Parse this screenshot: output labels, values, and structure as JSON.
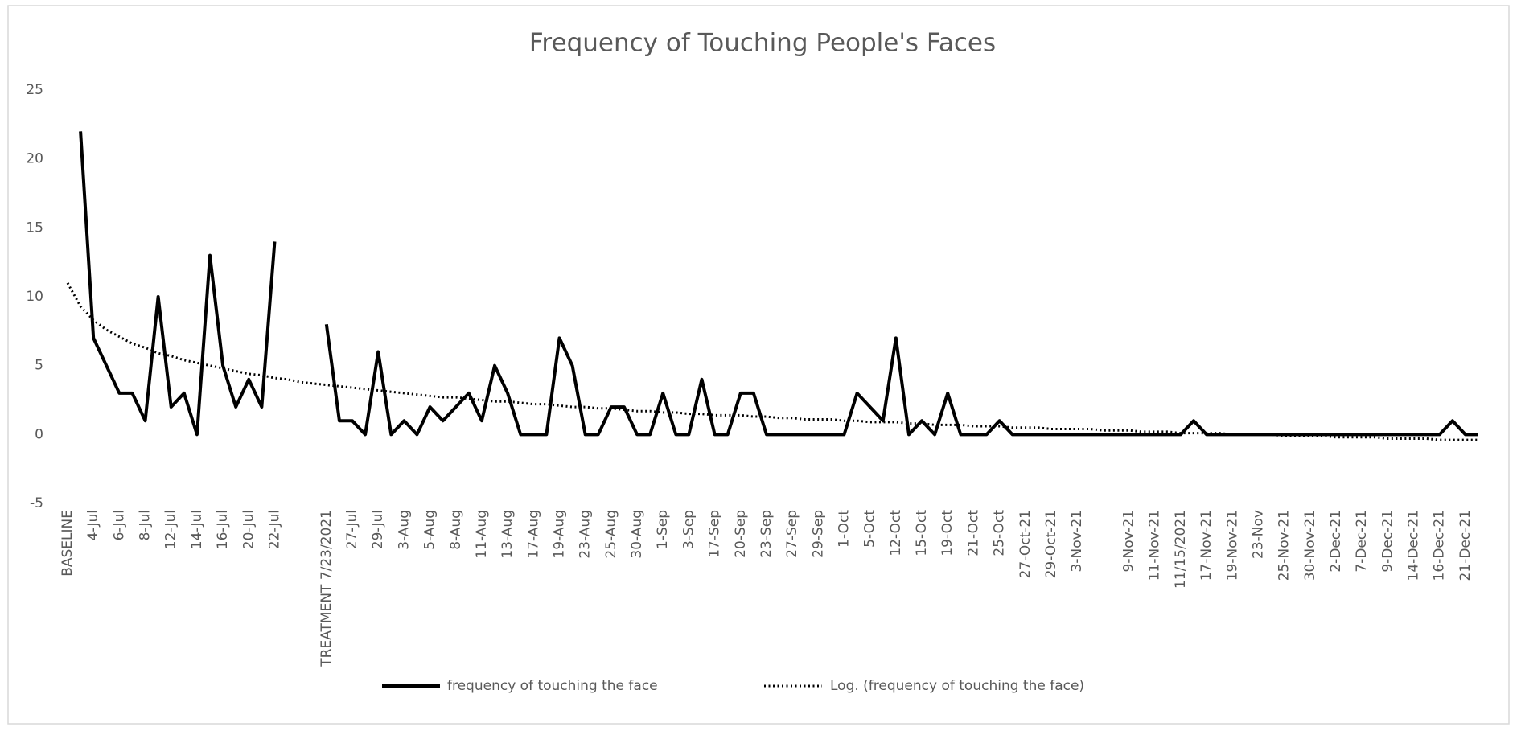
{
  "chart_data": {
    "type": "line",
    "title": "Frequency of Touching People's Faces",
    "categories": [
      "BASELINE",
      null,
      "4-Jul",
      null,
      "6-Jul",
      null,
      "8-Jul",
      null,
      "12-Jul",
      null,
      "14-Jul",
      null,
      "16-Jul",
      null,
      "20-Jul",
      null,
      "22-Jul",
      null,
      null,
      null,
      "TREATMENT 7/23/2021",
      null,
      "27-Jul",
      null,
      "29-Jul",
      null,
      "3-Aug",
      null,
      "5-Aug",
      null,
      "8-Aug",
      null,
      "11-Aug",
      null,
      "13-Aug",
      null,
      "17-Aug",
      null,
      "19-Aug",
      null,
      "23-Aug",
      null,
      "25-Aug",
      null,
      "30-Aug",
      null,
      "1-Sep",
      null,
      "3-Sep",
      null,
      "17-Sep",
      null,
      "20-Sep",
      null,
      "23-Sep",
      null,
      "27-Sep",
      null,
      "29-Sep",
      null,
      "1-Oct",
      null,
      "5-Oct",
      null,
      "12-Oct",
      null,
      "15-Oct",
      null,
      "19-Oct",
      null,
      "21-Oct",
      null,
      "25-Oct",
      null,
      "27-Oct-21",
      null,
      "29-Oct-21",
      null,
      "3-Nov-21",
      null,
      null,
      null,
      "9-Nov-21",
      null,
      "11-Nov-21",
      null,
      "11/15/2021",
      null,
      "17-Nov-21",
      null,
      "19-Nov-21",
      null,
      "23-Nov",
      null,
      "25-Nov-21",
      null,
      "30-Nov-21",
      null,
      "2-Dec-21",
      null,
      "7-Dec-21",
      null,
      "9-Dec-21",
      null,
      "14-Dec-21",
      null,
      "16-Dec-21",
      null,
      "21-Dec-21",
      null
    ],
    "series": [
      {
        "name": "frequency of touching the face",
        "color": "#000000",
        "line_style": "solid",
        "values": [
          null,
          22,
          7,
          5,
          3,
          3,
          1,
          10,
          2,
          3,
          0,
          13,
          5,
          2,
          4,
          2,
          14,
          null,
          null,
          null,
          8,
          1,
          1,
          0,
          6,
          0,
          1,
          0,
          2,
          1,
          2,
          3,
          1,
          5,
          3,
          0,
          0,
          0,
          7,
          5,
          0,
          0,
          2,
          2,
          0,
          0,
          3,
          0,
          0,
          4,
          0,
          0,
          3,
          3,
          0,
          0,
          0,
          0,
          0,
          0,
          0,
          3,
          2,
          1,
          7,
          0,
          1,
          0,
          3,
          0,
          0,
          0,
          1,
          0,
          0,
          0,
          0,
          0,
          0,
          0,
          0,
          0,
          0,
          0,
          0,
          0,
          0,
          1,
          0,
          0,
          0,
          0,
          0,
          0,
          0,
          0,
          0,
          0,
          0,
          0,
          0,
          0,
          0,
          0,
          0,
          0,
          0,
          1,
          0,
          0
        ]
      },
      {
        "name": "Log. (frequency of touching the face)",
        "color": "#000000",
        "line_style": "dotted",
        "values": [
          11.0,
          9.3,
          8.3,
          7.6,
          7.1,
          6.6,
          6.3,
          5.9,
          5.7,
          5.4,
          5.2,
          5.0,
          4.8,
          4.6,
          4.4,
          4.3,
          4.1,
          4.0,
          3.8,
          3.7,
          3.6,
          3.5,
          3.4,
          3.3,
          3.2,
          3.1,
          3.0,
          2.9,
          2.8,
          2.7,
          2.7,
          2.6,
          2.5,
          2.4,
          2.4,
          2.3,
          2.2,
          2.2,
          2.1,
          2.0,
          2.0,
          1.9,
          1.9,
          1.8,
          1.7,
          1.7,
          1.6,
          1.6,
          1.5,
          1.5,
          1.4,
          1.4,
          1.4,
          1.3,
          1.3,
          1.2,
          1.2,
          1.1,
          1.1,
          1.1,
          1.0,
          1.0,
          0.9,
          0.9,
          0.9,
          0.8,
          0.8,
          0.7,
          0.7,
          0.7,
          0.6,
          0.6,
          0.6,
          0.5,
          0.5,
          0.5,
          0.4,
          0.4,
          0.4,
          0.4,
          0.3,
          0.3,
          0.3,
          0.2,
          0.2,
          0.2,
          0.1,
          0.1,
          0.1,
          0.1,
          0.0,
          0.0,
          0.0,
          0.0,
          -0.1,
          -0.1,
          -0.1,
          -0.1,
          -0.2,
          -0.2,
          -0.2,
          -0.2,
          -0.3,
          -0.3,
          -0.3,
          -0.3,
          -0.4,
          -0.4,
          -0.4,
          -0.4
        ]
      }
    ],
    "ylim": [
      -5,
      25
    ],
    "yticks": [
      -5,
      0,
      5,
      10,
      15,
      20,
      25
    ],
    "grid": false,
    "legend": "bottom"
  }
}
